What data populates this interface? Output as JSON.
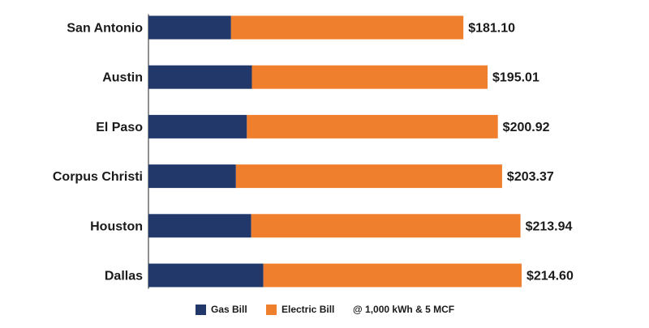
{
  "chart_data": {
    "type": "bar",
    "orientation": "horizontal",
    "stacked": true,
    "categories": [
      "San Antonio",
      "Austin",
      "El Paso",
      "Corpus Christi",
      "Houston",
      "Dallas"
    ],
    "series": [
      {
        "name": "Gas Bill",
        "color": "#22386b",
        "values": [
          47.5,
          59.5,
          56.6,
          50.3,
          59.1,
          66.1
        ]
      },
      {
        "name": "Electric Bill",
        "color": "#ef7f2d",
        "values": [
          133.6,
          135.51,
          144.32,
          153.07,
          154.84,
          148.5
        ]
      }
    ],
    "totals_labels": [
      "$181.10",
      "$195.01",
      "$200.92",
      "$203.37",
      "$213.94",
      "$214.60"
    ],
    "totals": [
      181.1,
      195.01,
      200.92,
      203.37,
      213.94,
      214.6
    ],
    "xlim": [
      0,
      214.6
    ],
    "grid": false,
    "legend_position": "bottom",
    "note": "@ 1,000 kWh & 5 MCF"
  },
  "legend": {
    "gas_label": "Gas Bill",
    "electric_label": "Electric Bill",
    "note": "@ 1,000 kWh & 5 MCF",
    "gas_color": "#22386b",
    "electric_color": "#ef7f2d"
  }
}
